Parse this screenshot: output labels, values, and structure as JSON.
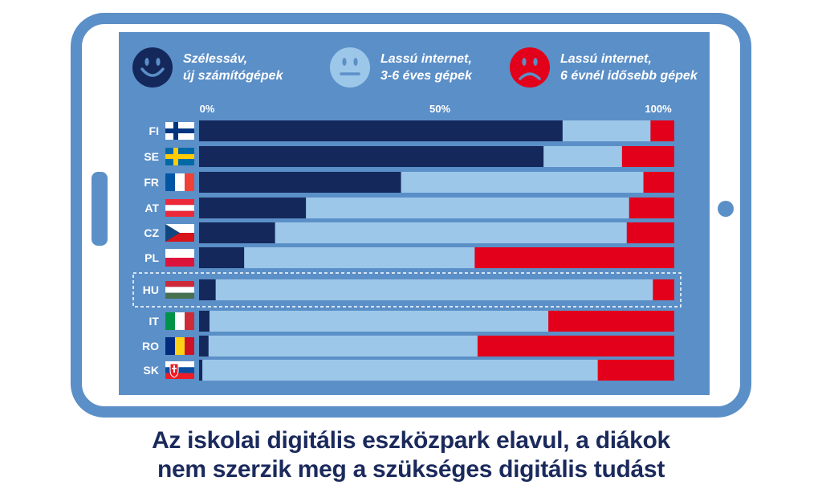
{
  "legend": [
    {
      "line1": "Szélessáv,",
      "line2": "új számítógépek",
      "color": "#14285c",
      "icon": "happy-face-icon"
    },
    {
      "line1": "Lassú internet,",
      "line2": "3-6 éves gépek",
      "color": "#9cc7e9",
      "icon": "neutral-face-icon"
    },
    {
      "line1": "Lassú internet,",
      "line2": "6 évnél idősebb gépek",
      "color": "#e2001a",
      "icon": "sad-face-icon"
    }
  ],
  "title": {
    "line1": "Az iskolai digitális eszközpark elavul, a diákok",
    "line2": "nem szerzik meg a szükséges digitális tudást"
  },
  "chart_data": {
    "type": "bar",
    "orientation": "horizontal",
    "stacked": true,
    "xlim": [
      0,
      100
    ],
    "xticks": [
      "0%",
      "50%",
      "100%"
    ],
    "categories": [
      "FI",
      "SE",
      "FR",
      "AT",
      "CZ",
      "PL",
      "HU",
      "IT",
      "RO",
      "SK"
    ],
    "highlight": "HU",
    "series": [
      {
        "name": "Szélessáv, új számítógépek",
        "color": "#14285c",
        "values": [
          76.5,
          72.5,
          42.5,
          22.5,
          16,
          9.5,
          3.5,
          2.2,
          2,
          0.7
        ]
      },
      {
        "name": "Lassú internet, 3-6 éves gépek",
        "color": "#9cc7e9",
        "values": [
          18.5,
          16.5,
          51,
          68,
          74,
          48.5,
          92,
          71.3,
          56.6,
          83.2
        ]
      },
      {
        "name": "Lassú internet, 6 évnél idősebb gépek",
        "color": "#e2001a",
        "values": [
          5,
          11,
          6.5,
          9.5,
          10,
          42,
          4.5,
          26.5,
          41.4,
          16.1
        ]
      }
    ]
  }
}
